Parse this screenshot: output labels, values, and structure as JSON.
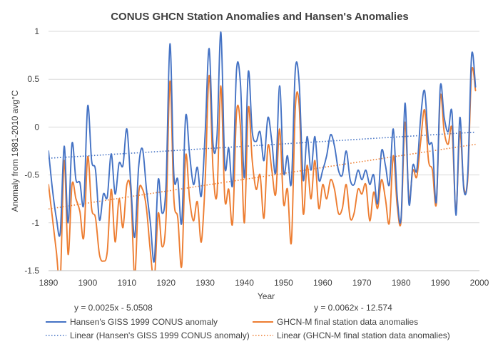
{
  "chart_data": {
    "type": "line",
    "title": "CONUS GHCN Station Anomalies and Hansen's Anomalies",
    "xlabel": "Year",
    "ylabel": "Anomaly from 1981-2010 avg°C",
    "xlim": [
      1890,
      2000
    ],
    "ylim": [
      -1.5,
      1
    ],
    "x_ticks": [
      "1890",
      "1900",
      "1910",
      "1920",
      "1930",
      "1940",
      "1950",
      "1960",
      "1970",
      "1980",
      "1990",
      "2000"
    ],
    "y_ticks": [
      "1",
      "0.5",
      "0",
      "-0.5",
      "-1",
      "-1.5"
    ],
    "grid": "horizontal",
    "legend_position": "bottom",
    "x": [
      1890,
      1891,
      1892,
      1893,
      1894,
      1895,
      1896,
      1897,
      1898,
      1899,
      1900,
      1901,
      1902,
      1903,
      1904,
      1905,
      1906,
      1907,
      1908,
      1909,
      1910,
      1911,
      1912,
      1913,
      1914,
      1915,
      1916,
      1917,
      1918,
      1919,
      1920,
      1921,
      1922,
      1923,
      1924,
      1925,
      1926,
      1927,
      1928,
      1929,
      1930,
      1931,
      1932,
      1933,
      1934,
      1935,
      1936,
      1937,
      1938,
      1939,
      1940,
      1941,
      1942,
      1943,
      1944,
      1945,
      1946,
      1947,
      1948,
      1949,
      1950,
      1951,
      1952,
      1953,
      1954,
      1955,
      1956,
      1957,
      1958,
      1959,
      1960,
      1961,
      1962,
      1963,
      1964,
      1965,
      1966,
      1967,
      1968,
      1969,
      1970,
      1971,
      1972,
      1973,
      1974,
      1975,
      1976,
      1977,
      1978,
      1979,
      1980,
      1981,
      1982,
      1983,
      1984,
      1985,
      1986,
      1987,
      1988,
      1989,
      1990,
      1991,
      1992,
      1993,
      1994,
      1995,
      1996,
      1997,
      1998,
      1999
    ],
    "series": [
      {
        "name": "Hansen's GISS 1999 CONUS anomaly",
        "color": "#4472C4",
        "style": "solid",
        "values": [
          -0.25,
          -0.65,
          -0.95,
          -1.1,
          -0.2,
          -1.0,
          -0.17,
          -0.55,
          -0.58,
          -0.8,
          0.22,
          -0.35,
          -0.45,
          -0.97,
          -0.7,
          -0.73,
          -0.28,
          -0.7,
          -0.38,
          -0.4,
          -0.02,
          -0.6,
          -1.15,
          -0.42,
          -0.23,
          -0.65,
          -1.0,
          -1.4,
          -0.55,
          -0.9,
          -0.6,
          0.87,
          -0.5,
          -0.55,
          -1.0,
          0.11,
          -0.28,
          -0.6,
          -0.42,
          -0.72,
          -0.05,
          0.82,
          -0.18,
          -0.1,
          0.99,
          -0.4,
          -0.22,
          -0.6,
          0.6,
          0.45,
          -0.53,
          0.58,
          -0.05,
          -0.15,
          -0.05,
          -0.35,
          0.1,
          -0.15,
          -0.47,
          0.43,
          -0.47,
          -0.3,
          -0.58,
          0.6,
          0.45,
          -0.55,
          -0.1,
          -0.45,
          -0.1,
          -0.55,
          -0.45,
          -0.3,
          -0.08,
          -0.2,
          -0.45,
          -0.5,
          -0.25,
          -0.55,
          -0.6,
          -0.45,
          -0.55,
          -0.45,
          -0.6,
          -0.5,
          -0.8,
          -0.25,
          -0.4,
          -0.6,
          -0.02,
          -0.72,
          -0.95,
          0.25,
          -0.8,
          -0.4,
          -0.45,
          0.1,
          0.38,
          -0.15,
          -0.2,
          -0.78,
          0.42,
          0.1,
          -0.05,
          0.15,
          -0.92,
          0.1,
          -0.65,
          -0.5,
          0.75,
          0.42
        ]
      },
      {
        "name": "GHCN-M final station data anomalies",
        "color": "#ED7D31",
        "style": "solid",
        "values": [
          -0.6,
          -0.95,
          -1.3,
          -1.6,
          -0.35,
          -1.33,
          -0.6,
          -0.75,
          -0.88,
          -1.15,
          -0.31,
          -0.85,
          -0.95,
          -1.33,
          -1.4,
          -1.3,
          -0.65,
          -1.2,
          -0.75,
          -1.05,
          -0.6,
          -0.68,
          -1.55,
          -0.7,
          -0.65,
          -0.85,
          -1.3,
          -1.6,
          -0.9,
          -1.25,
          -0.95,
          0.48,
          -0.75,
          -0.95,
          -1.45,
          -0.3,
          -0.75,
          -0.98,
          -0.78,
          -1.2,
          -0.55,
          0.54,
          -0.45,
          -0.7,
          0.43,
          -0.75,
          -0.65,
          -1.0,
          0.15,
          0.0,
          -1.0,
          0.2,
          -0.35,
          -0.65,
          -0.5,
          -0.95,
          -0.2,
          -0.45,
          -0.7,
          -0.02,
          -0.8,
          -0.65,
          -1.2,
          0.2,
          0.22,
          -0.9,
          -0.4,
          -0.75,
          -0.35,
          -0.85,
          -0.6,
          -0.75,
          -0.55,
          -0.65,
          -0.9,
          -0.85,
          -0.6,
          -0.95,
          -0.9,
          -0.65,
          -0.7,
          -0.6,
          -0.98,
          -0.68,
          -0.85,
          -0.55,
          -0.75,
          -1.0,
          -0.3,
          -0.82,
          -0.98,
          0.05,
          -0.75,
          -0.45,
          -0.52,
          -0.15,
          0.18,
          -0.35,
          -0.45,
          -0.8,
          0.32,
          -0.05,
          -0.18,
          -0.02,
          -0.88,
          -0.05,
          -0.62,
          -0.55,
          0.58,
          0.38
        ]
      }
    ],
    "trendlines": [
      {
        "name": "Linear (Hansen's GISS 1999 CONUS anomaly)",
        "color": "#4472C4",
        "style": "dotted",
        "slope": 0.0025,
        "intercept": -5.0508,
        "equation": "y = 0.0025x - 5.0508"
      },
      {
        "name": "Linear (GHCN-M final station data anomalies)",
        "color": "#ED7D31",
        "style": "dotted",
        "slope": 0.0062,
        "intercept": -12.574,
        "equation": "y = 0.0062x - 12.574"
      }
    ]
  }
}
